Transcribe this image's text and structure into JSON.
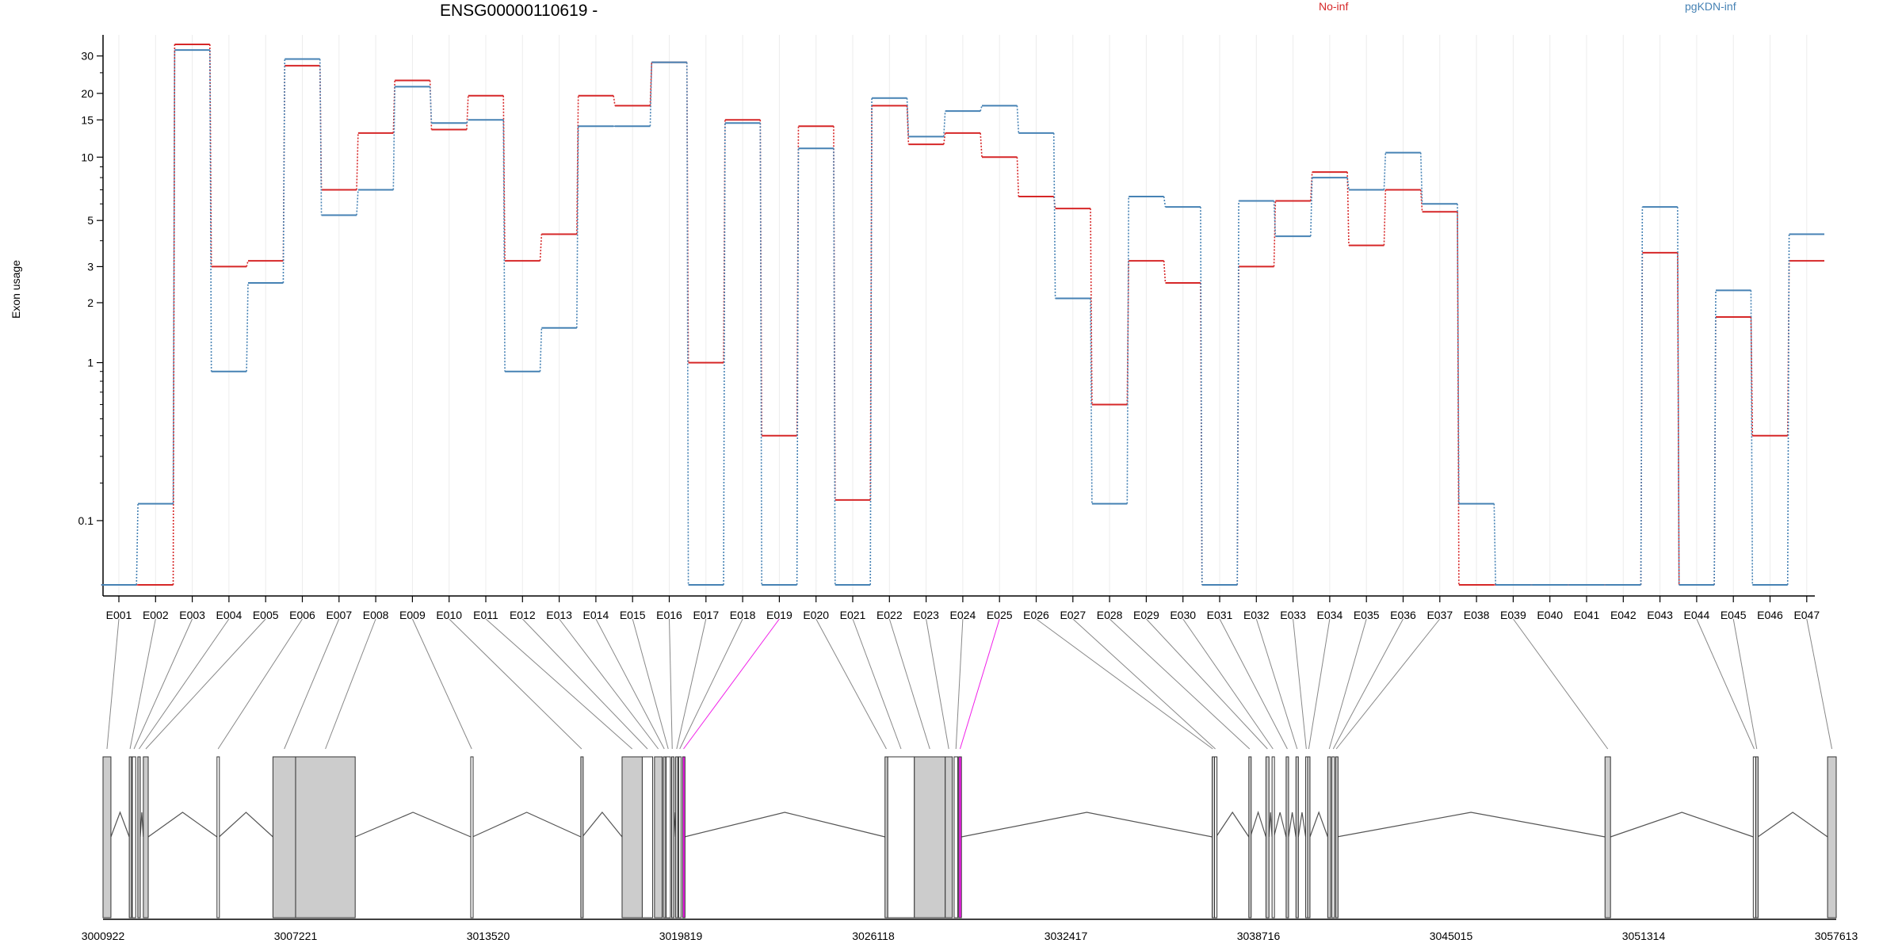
{
  "chart_data": {
    "type": "line",
    "title": "ENSG00000110619 -",
    "ylabel": "Exon usage",
    "y_scale": "log (plot of value + 0.1)",
    "y_ticks": [
      0.1,
      1,
      2,
      3,
      5,
      10,
      15,
      20,
      30
    ],
    "y_tick_labels": [
      "0.1",
      "1",
      "2",
      "3",
      "5",
      "10",
      "15",
      "20",
      "30"
    ],
    "grid": "vertical, light grey",
    "legend_position": "top",
    "categories": [
      "E001",
      "E002",
      "E003",
      "E004",
      "E005",
      "E006",
      "E007",
      "E008",
      "E009",
      "E010",
      "E011",
      "E012",
      "E013",
      "E014",
      "E015",
      "E016",
      "E017",
      "E018",
      "E019",
      "E020",
      "E021",
      "E022",
      "E023",
      "E024",
      "E025",
      "E026",
      "E027",
      "E028",
      "E029",
      "E030",
      "E031",
      "E032",
      "E033",
      "E034",
      "E035",
      "E036",
      "E037",
      "E038",
      "E039",
      "E040",
      "E041",
      "E042",
      "E043",
      "E044",
      "E045",
      "E046",
      "E047"
    ],
    "series": [
      {
        "name": "No-inf",
        "color": "#d62728",
        "values": [
          0,
          0,
          34,
          3.0,
          3.2,
          27,
          7.0,
          13,
          23,
          13.5,
          19.5,
          3.2,
          4.3,
          19.5,
          17.5,
          28,
          1.0,
          15,
          0.4,
          14,
          0.15,
          17.5,
          11.5,
          13,
          10,
          6.5,
          5.7,
          0.6,
          3.2,
          2.5,
          0,
          3.0,
          6.2,
          8.5,
          3.8,
          7.0,
          5.5,
          0,
          0,
          0,
          0,
          0,
          3.5,
          0,
          1.7,
          0.4,
          3.2
        ]
      },
      {
        "name": "pgKDN-inf",
        "color": "#4682b4",
        "values": [
          0,
          0.14,
          32,
          0.9,
          2.5,
          29,
          5.3,
          7.0,
          21.5,
          14.5,
          15,
          0.9,
          1.5,
          14,
          14,
          28,
          0,
          14.5,
          0,
          11,
          0,
          19,
          12.5,
          16.5,
          17.5,
          13,
          2.1,
          0.14,
          6.5,
          5.8,
          0,
          6.2,
          4.2,
          8.0,
          7.0,
          10.5,
          6.0,
          0.14,
          0,
          0,
          0,
          0,
          5.8,
          0,
          2.3,
          0,
          4.3
        ]
      }
    ],
    "highlight": {
      "exons": [
        "E019",
        "E025"
      ],
      "color": "#f01ee8"
    },
    "genomic_axis": {
      "start": 3000922,
      "end": 3057613,
      "tick_labels": [
        "3000922",
        "3007221",
        "3013520",
        "3019819",
        "3026118",
        "3032417",
        "3038716",
        "3045015",
        "3051314",
        "3057613"
      ]
    }
  }
}
